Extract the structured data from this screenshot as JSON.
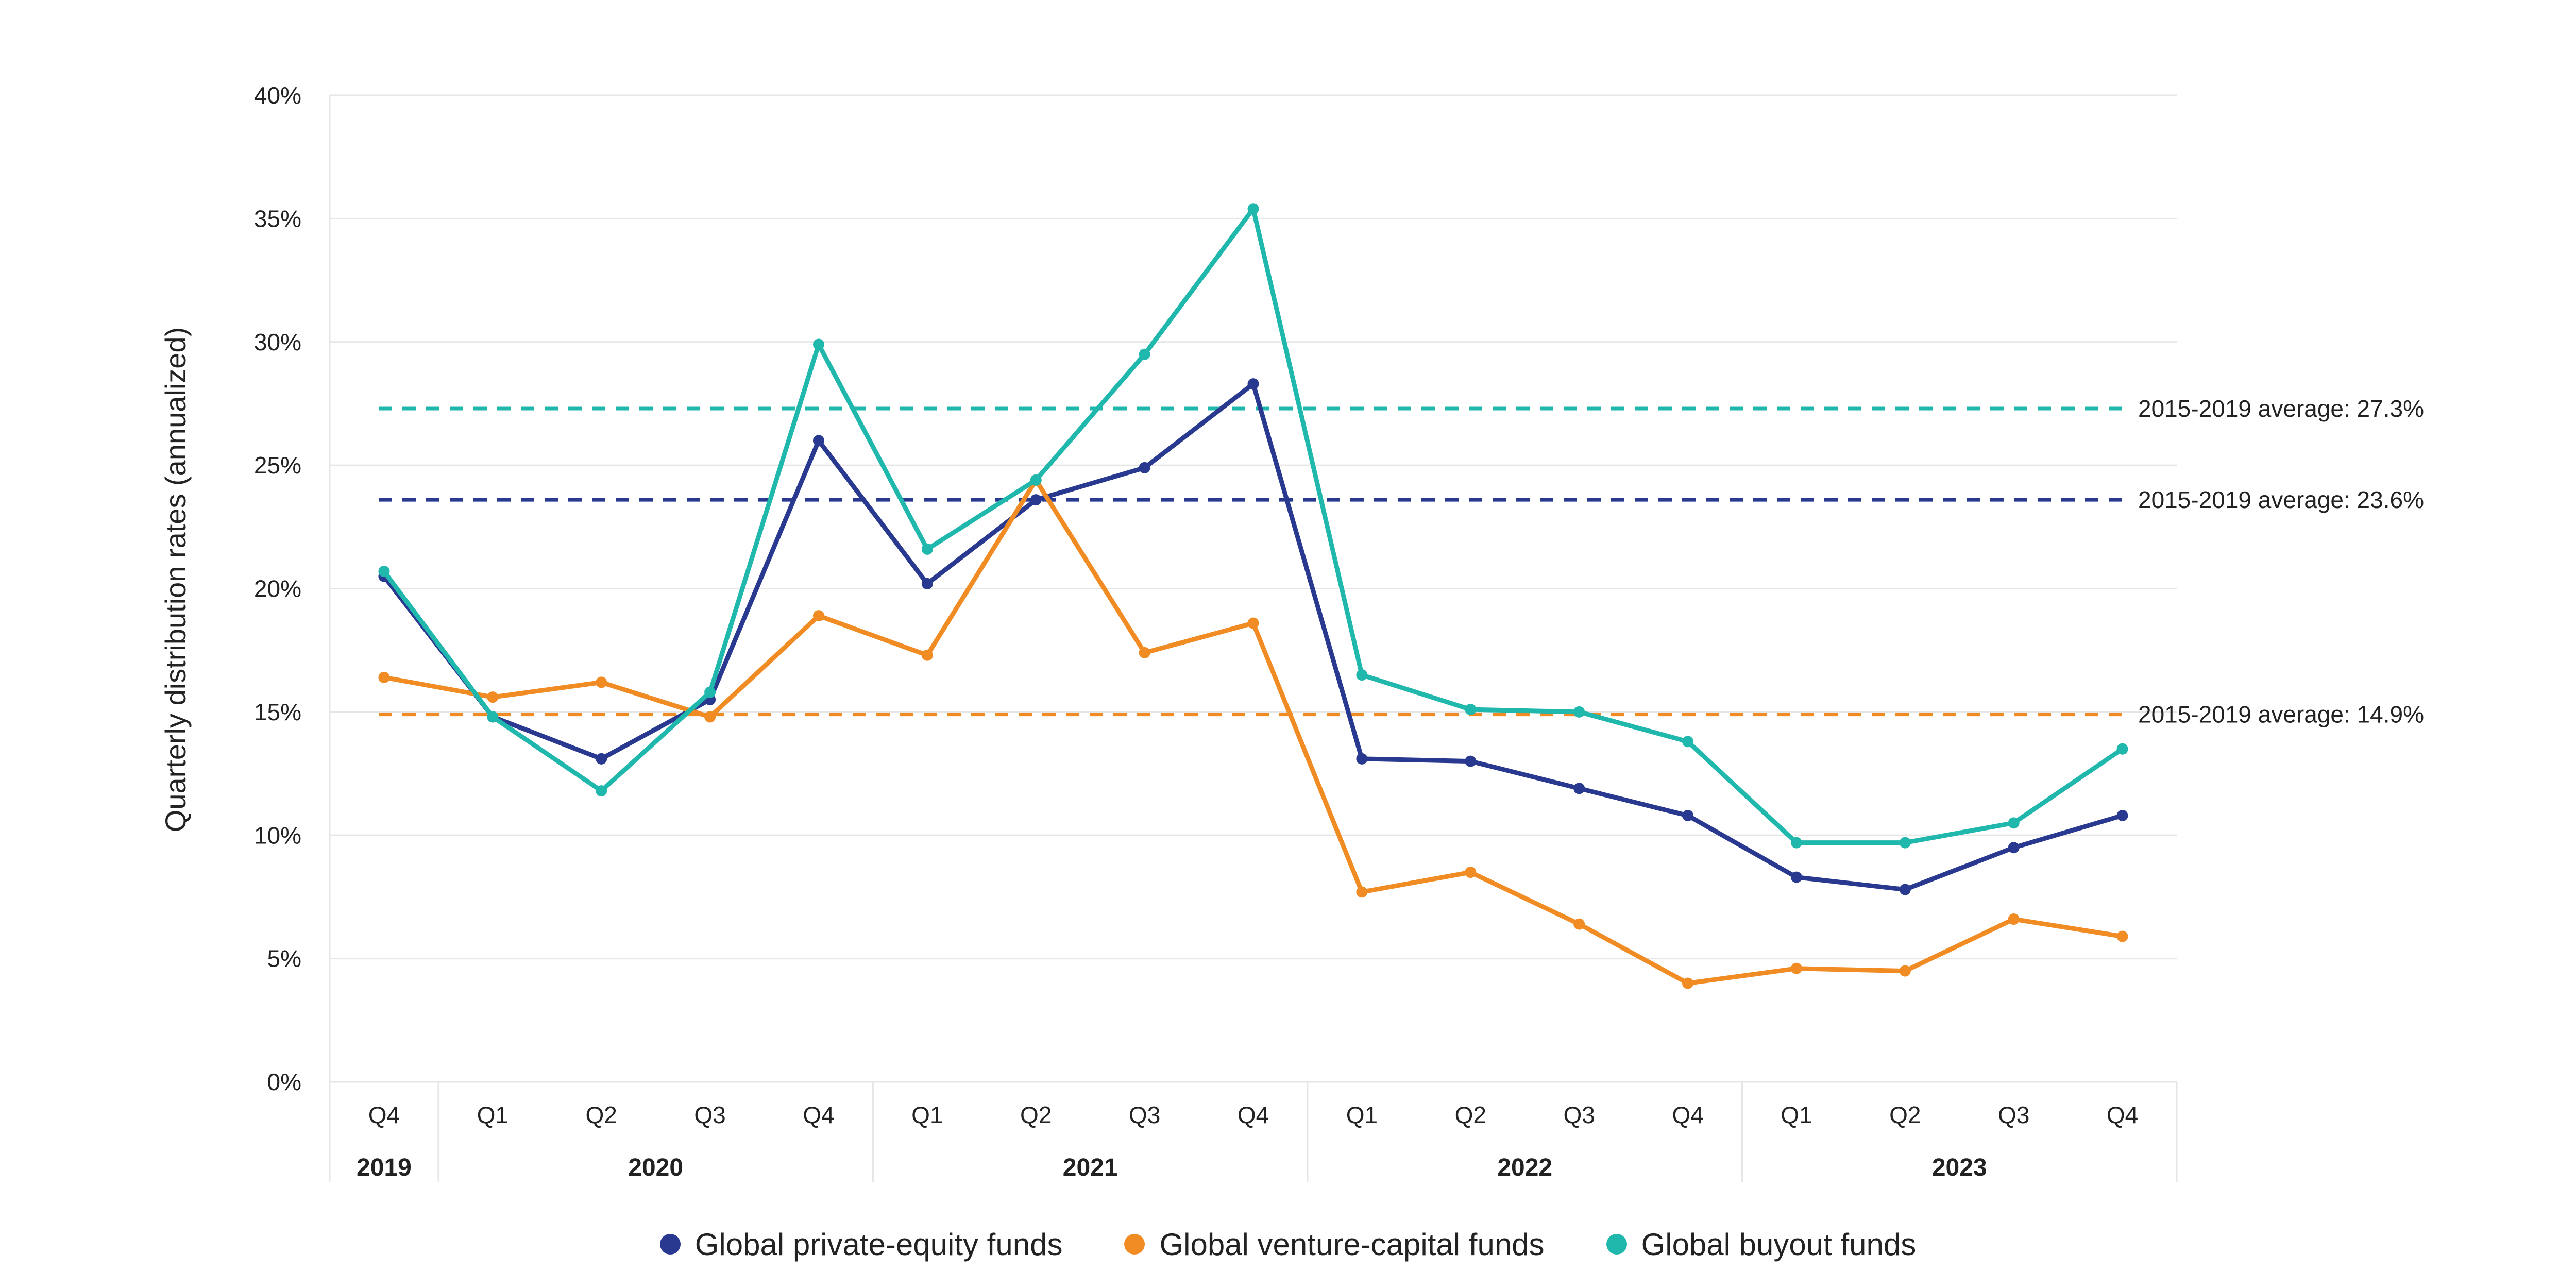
{
  "chart_data": {
    "type": "line",
    "ylabel": "Quarterly distribution rates (annualized)",
    "ylim": [
      0,
      40
    ],
    "yticks": [
      "0%",
      "5%",
      "10%",
      "15%",
      "20%",
      "25%",
      "30%",
      "35%",
      "40%"
    ],
    "grid": true,
    "categories": [
      "Q4",
      "Q1",
      "Q2",
      "Q3",
      "Q4",
      "Q1",
      "Q2",
      "Q3",
      "Q4",
      "Q1",
      "Q2",
      "Q3",
      "Q4",
      "Q1",
      "Q2",
      "Q3",
      "Q4"
    ],
    "years": [
      {
        "label": "2019",
        "span": 1
      },
      {
        "label": "2020",
        "span": 4
      },
      {
        "label": "2021",
        "span": 4
      },
      {
        "label": "2022",
        "span": 4
      },
      {
        "label": "2023",
        "span": 4
      }
    ],
    "series": [
      {
        "name": "Global private-equity funds",
        "color": "#2a3990",
        "values": [
          20.5,
          14.8,
          13.1,
          15.5,
          26.0,
          20.2,
          23.6,
          24.9,
          28.3,
          13.1,
          13.0,
          11.9,
          10.8,
          8.3,
          7.8,
          9.5,
          10.8
        ]
      },
      {
        "name": "Global venture-capital funds",
        "color": "#f08c23",
        "values": [
          16.4,
          15.6,
          16.2,
          14.8,
          18.9,
          17.3,
          24.4,
          17.4,
          18.6,
          7.7,
          8.5,
          6.4,
          4.0,
          4.6,
          4.5,
          6.6,
          5.9
        ]
      },
      {
        "name": "Global buyout funds",
        "color": "#20b8ac",
        "values": [
          20.7,
          14.8,
          11.8,
          15.8,
          29.9,
          21.6,
          24.4,
          29.5,
          35.4,
          16.5,
          15.1,
          15.0,
          13.8,
          9.7,
          9.7,
          10.5,
          13.5
        ]
      }
    ],
    "reference_lines": [
      {
        "value": 27.3,
        "label": "2015-2019 average: 27.3%",
        "color": "#20b8ac"
      },
      {
        "value": 23.6,
        "label": "2015-2019 average: 23.6%",
        "color": "#2a3990"
      },
      {
        "value": 14.9,
        "label": "2015-2019 average: 14.9%",
        "color": "#f08c23"
      }
    ],
    "legend_position": "bottom-center"
  }
}
